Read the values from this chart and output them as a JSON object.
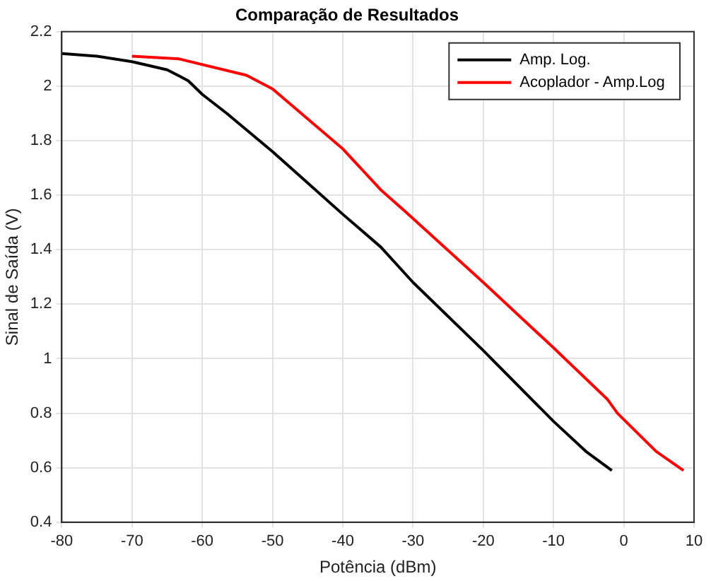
{
  "chart_data": {
    "type": "line",
    "title": "Comparação de Resultados",
    "xlabel": "Potência (dBm)",
    "ylabel": "Sinal de Saída (V)",
    "xlim": [
      -80,
      10
    ],
    "xticks": [
      -80,
      -70,
      -60,
      -50,
      -40,
      -30,
      -20,
      -10,
      0,
      10
    ],
    "ylim": [
      0.4,
      2.2
    ],
    "yticks": [
      0.4,
      0.6,
      0.8,
      1,
      1.2,
      1.4,
      1.6,
      1.8,
      2,
      2.2
    ],
    "grid": true,
    "legend": "top right",
    "marker": "none",
    "line_style": "solid",
    "series": [
      {
        "name": "Amp. Log.",
        "color": "#000000",
        "x": [
          -80,
          -75,
          -70,
          -65,
          -62,
          -60,
          -56.5,
          -50,
          -40,
          -34.6,
          -30,
          -20,
          -10,
          -5.4,
          -1.7
        ],
        "values": [
          2.12,
          2.11,
          2.09,
          2.06,
          2.02,
          1.97,
          1.9,
          1.76,
          1.53,
          1.41,
          1.28,
          1.03,
          0.77,
          0.66,
          0.59
        ]
      },
      {
        "name": "Acoplador - Amp.Log",
        "color": "#ff0000",
        "x": [
          -70,
          -63.3,
          -53.7,
          -50,
          -40,
          -34.6,
          -31.1,
          -20,
          -10,
          -2.3,
          -0.9,
          4.6,
          8.5
        ],
        "values": [
          2.11,
          2.1,
          2.04,
          1.99,
          1.77,
          1.62,
          1.54,
          1.28,
          1.04,
          0.85,
          0.8,
          0.66,
          0.59
        ]
      }
    ]
  }
}
